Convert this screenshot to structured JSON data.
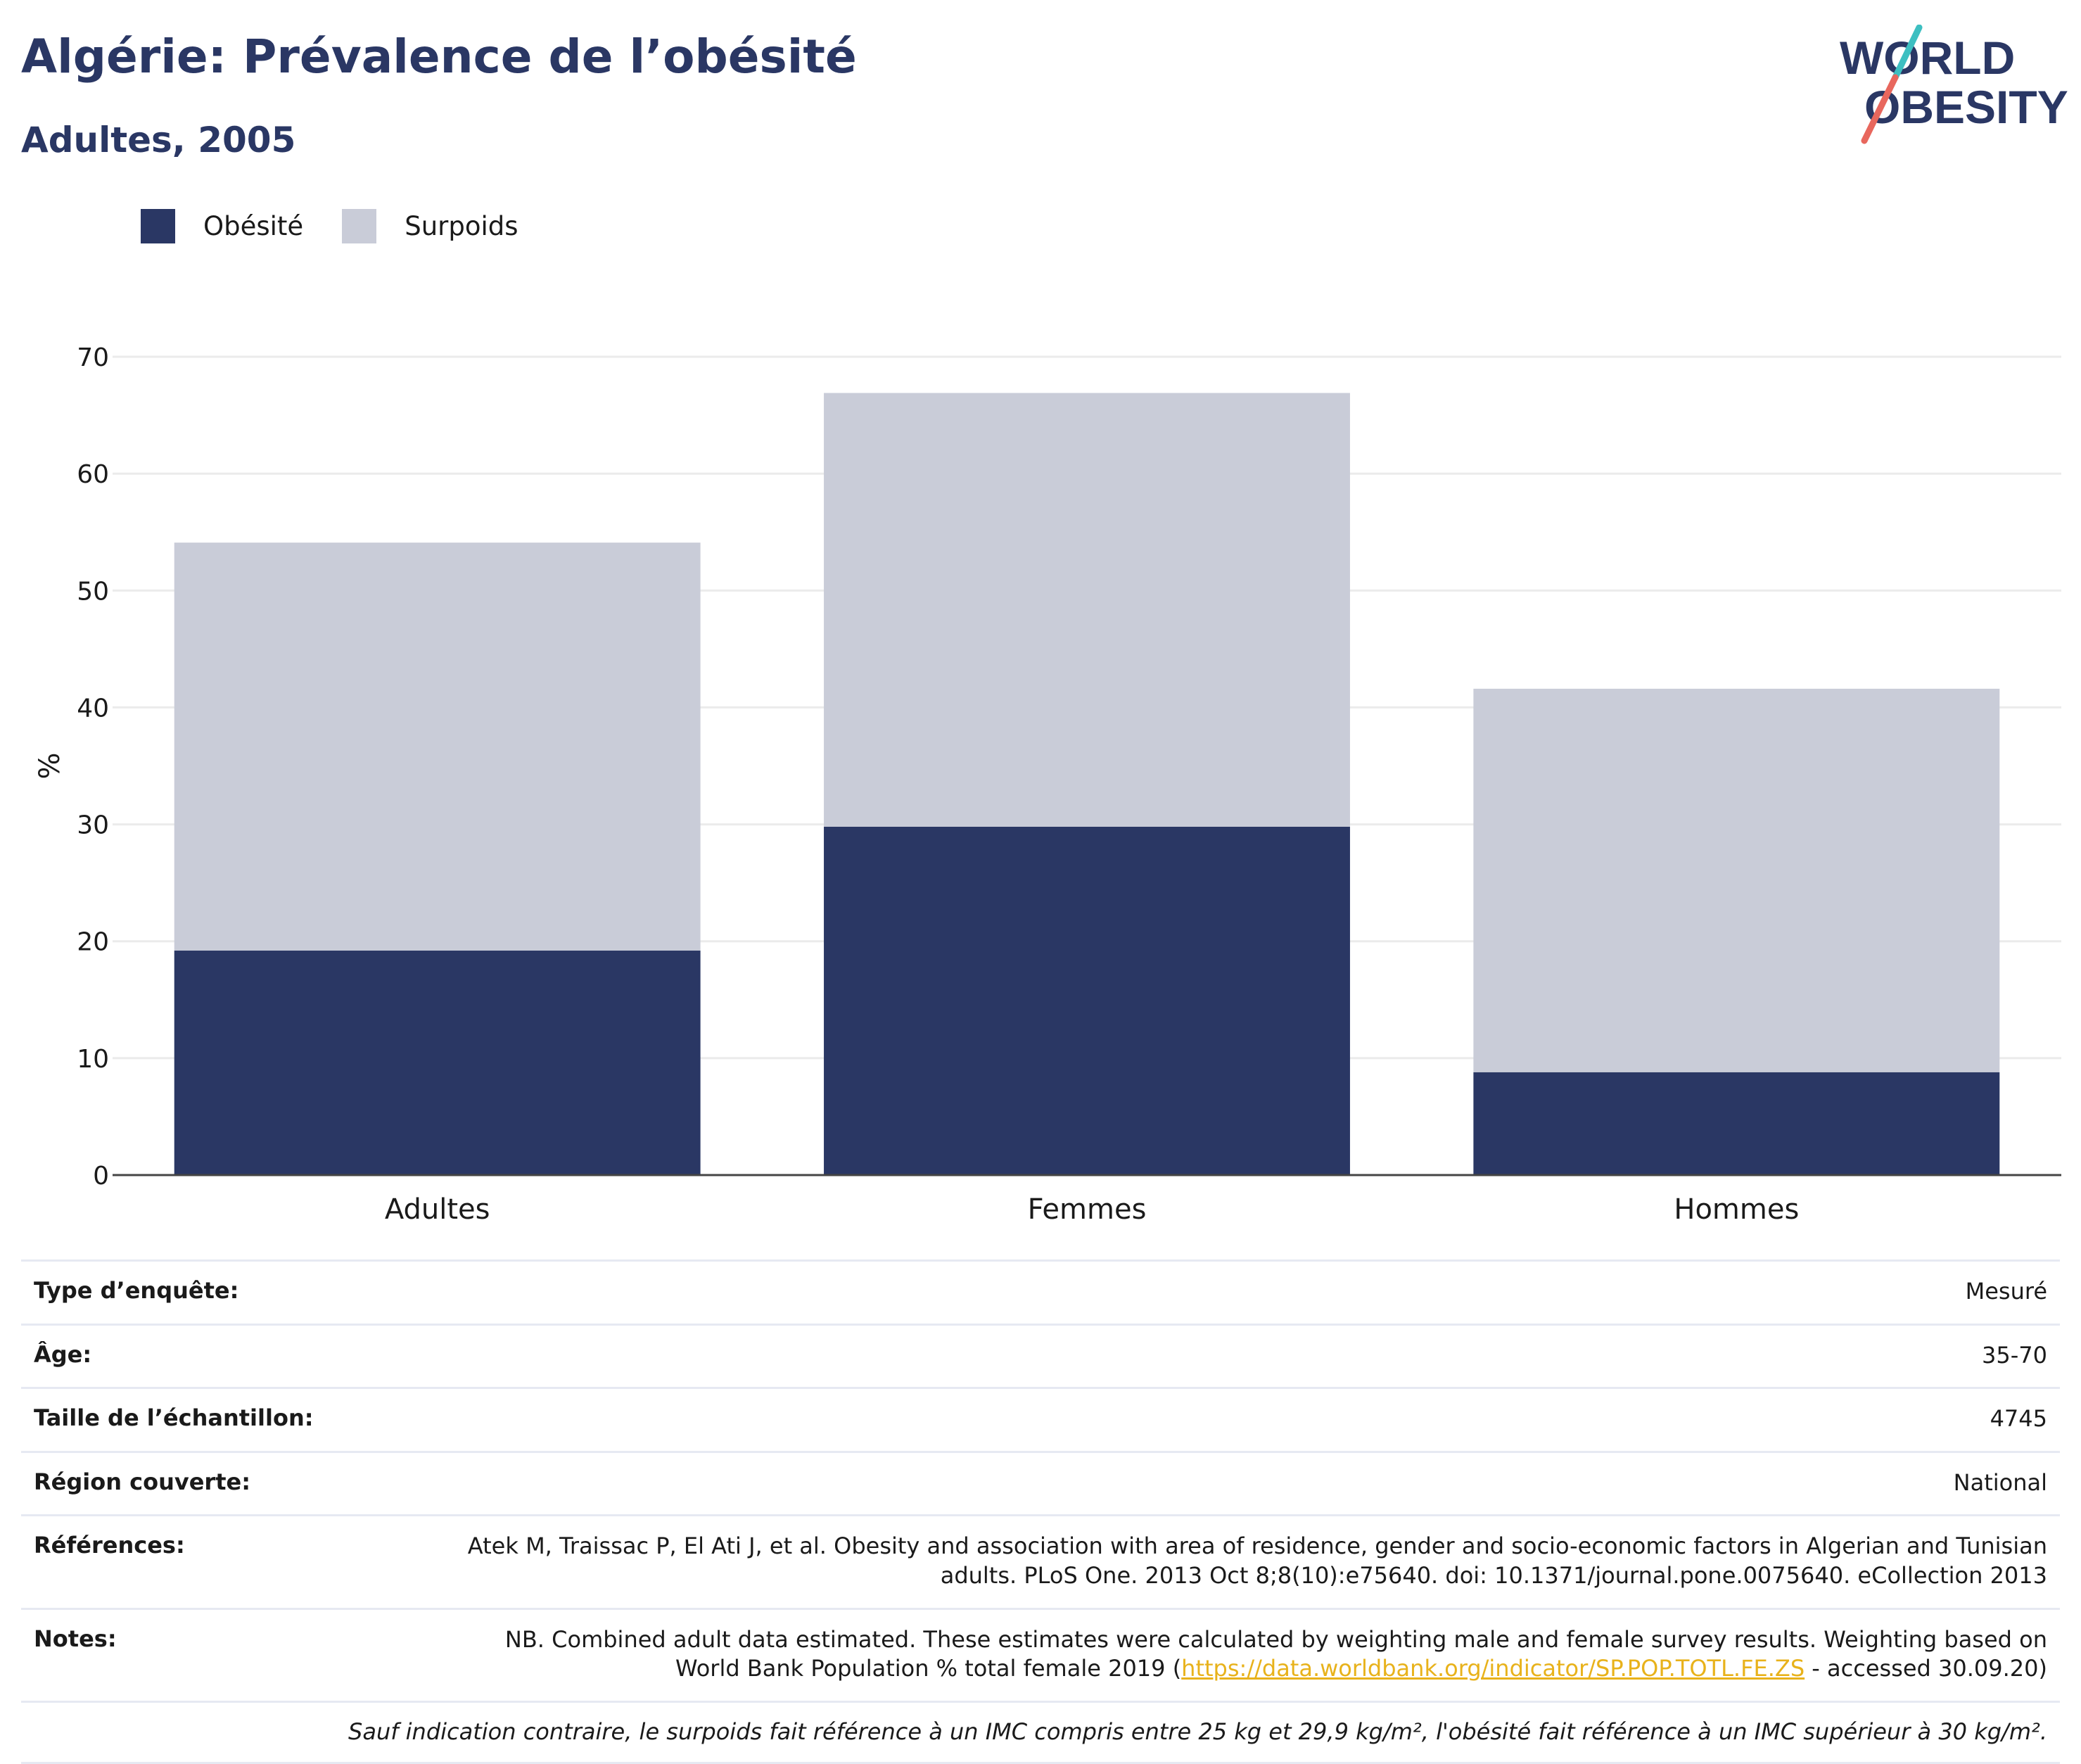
{
  "header": {
    "title": "Algérie: Prévalence de l’obésité",
    "subtitle": "Adultes, 2005"
  },
  "logo": {
    "line1": "WORLD",
    "line2": "OBESITY"
  },
  "colors": {
    "obesity": "#2a3764",
    "overweight": "#c9ccd8",
    "text": "#1a1a1a",
    "link": "#e8b21b",
    "logo_teal": "#3dbfc1",
    "logo_coral": "#e8675d"
  },
  "legend": [
    {
      "label": "Obésité",
      "color": "#2a3764"
    },
    {
      "label": "Surpoids",
      "color": "#c9ccd8"
    }
  ],
  "chart_data": {
    "type": "bar",
    "stacked": true,
    "categories": [
      "Adultes",
      "Femmes",
      "Hommes"
    ],
    "series": [
      {
        "name": "Obésité",
        "values": [
          19.2,
          29.8,
          8.8
        ]
      },
      {
        "name": "Surpoids",
        "values": [
          34.9,
          37.1,
          32.8
        ]
      }
    ],
    "ylabel": "%",
    "ylim": [
      0,
      70
    ],
    "yticks": [
      0,
      10,
      20,
      30,
      40,
      50,
      60,
      70
    ],
    "grid": true,
    "legend_position": "top-left"
  },
  "info": {
    "rows": [
      {
        "label": "Type d’enquête:",
        "value": "Mesuré"
      },
      {
        "label": "Âge:",
        "value": "35-70"
      },
      {
        "label": "Taille de l’échantillon:",
        "value": "4745"
      },
      {
        "label": "Région couverte:",
        "value": "National"
      },
      {
        "label": "Références:",
        "value": "Atek M, Traissac P, El Ati J, et al. Obesity and association with area of residence, gender and socio-economic factors in Algerian and Tunisian adults. PLoS One. 2013 Oct 8;8(10):e75640. doi: 10.1371/journal.pone.0075640. eCollection 2013"
      }
    ],
    "notes": {
      "label": "Notes:",
      "text_before": "NB. Combined adult data estimated. These estimates were calculated by weighting male and female survey results. Weighting based on World Bank Population % total female 2019 (",
      "link": "https://data.worldbank.org/indicator/SP.POP.TOTL.FE.ZS",
      "text_after": " - accessed 30.09.20)"
    },
    "footnote": "Sauf indication contraire, le surpoids fait référence à un IMC compris entre 25 kg et 29,9 kg/m², l'obésité fait référence à un IMC supérieur à 30 kg/m²."
  }
}
